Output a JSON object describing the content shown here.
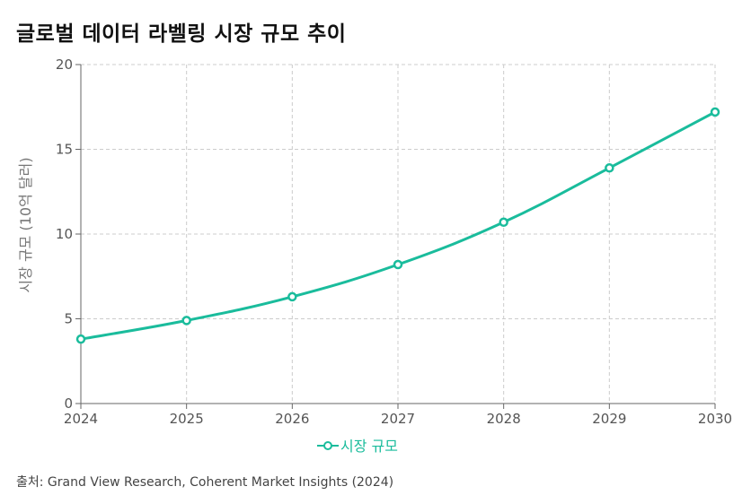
{
  "chart_data": {
    "type": "line",
    "title": "글로벌 데이터 라벨링 시장 규모 추이",
    "xlabel": "",
    "ylabel": "시장 규모 (10억 달러)",
    "x": [
      2024,
      2025,
      2026,
      2027,
      2028,
      2029,
      2030
    ],
    "x_tick_labels": [
      "2024",
      "2025",
      "2026",
      "2027",
      "2028",
      "2029",
      "2030"
    ],
    "y_ticks": [
      0,
      5,
      10,
      15,
      20
    ],
    "ylim": [
      0,
      20
    ],
    "grid": true,
    "legend_position": "bottom",
    "series": [
      {
        "name": "시장 규모",
        "color": "#1abc9c",
        "values": [
          3.8,
          4.9,
          6.3,
          8.2,
          10.7,
          13.9,
          17.2
        ]
      }
    ]
  },
  "source": "출처: Grand View Research, Coherent Market Insights (2024)"
}
